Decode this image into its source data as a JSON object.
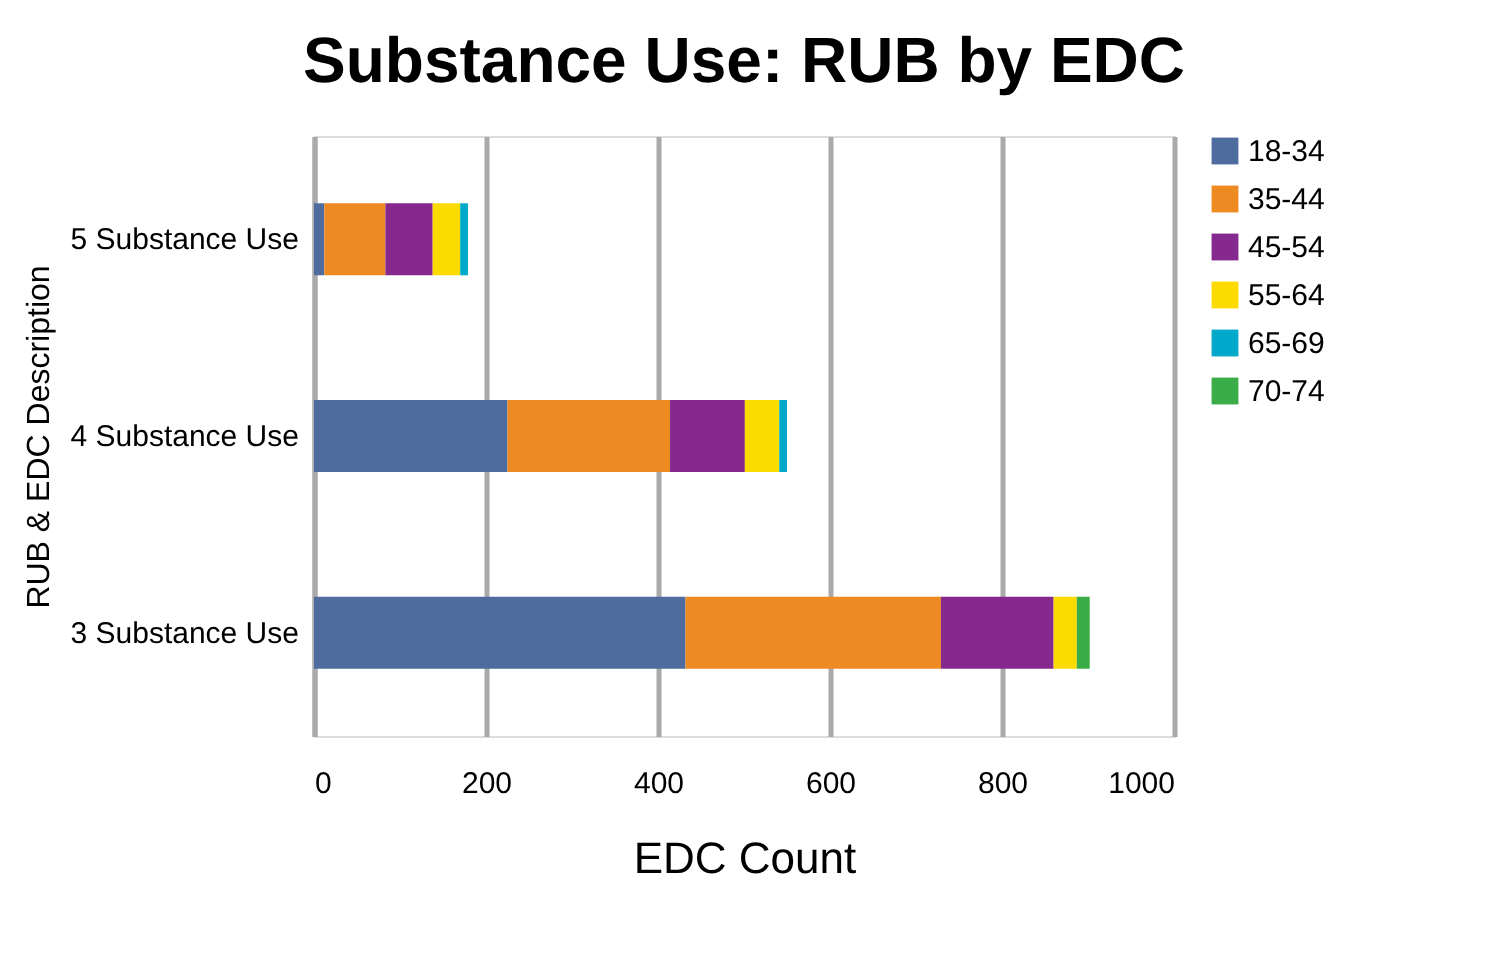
{
  "chart_data": {
    "type": "bar",
    "orientation": "horizontal",
    "stacked": true,
    "title": "Substance Use: RUB by EDC",
    "xlabel": "EDC Count",
    "ylabel": "RUB & EDC Description",
    "categories": [
      "5 Substance Use",
      "4 Substance Use",
      "3 Substance Use"
    ],
    "series": [
      {
        "name": "18-34",
        "color": "#4e6d9e",
        "values": [
          12,
          225,
          432
        ]
      },
      {
        "name": "35-44",
        "color": "#ed8a22",
        "values": [
          71,
          189,
          297
        ]
      },
      {
        "name": "45-54",
        "color": "#86298e",
        "values": [
          55,
          87,
          131
        ]
      },
      {
        "name": "55-64",
        "color": "#fcdc00",
        "values": [
          32,
          40,
          27
        ]
      },
      {
        "name": "65-69",
        "color": "#00a9c9",
        "values": [
          9,
          9,
          0
        ]
      },
      {
        "name": "70-74",
        "color": "#3aad48",
        "values": [
          0,
          0,
          15
        ]
      }
    ],
    "xlim": [
      0,
      1000
    ],
    "xticks": [
      0,
      200,
      400,
      600,
      800,
      1000
    ],
    "grid": "x",
    "legend": "right"
  }
}
